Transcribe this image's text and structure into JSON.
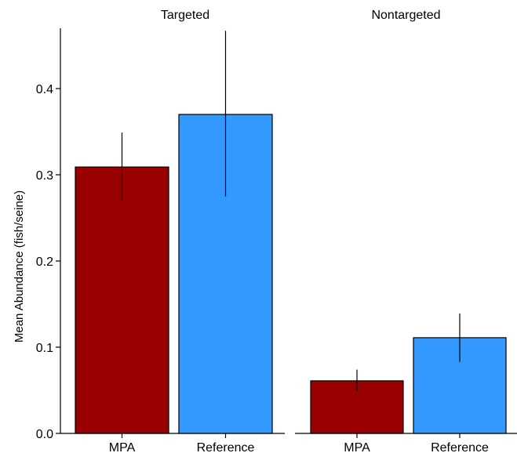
{
  "chart_data": {
    "type": "bar",
    "ylabel": "Mean Abundance (fish/seine)",
    "ylim": [
      0,
      0.47
    ],
    "yticks": [
      0.0,
      0.1,
      0.2,
      0.3,
      0.4
    ],
    "ytick_labels": [
      "0.0",
      "0.1",
      "0.2",
      "0.3",
      "0.4"
    ],
    "categories": [
      "MPA",
      "Reference"
    ],
    "colors": {
      "MPA": "#990000",
      "Reference": "#3399ff"
    },
    "panels": [
      {
        "title": "Targeted",
        "bars": [
          {
            "category": "MPA",
            "value": 0.309,
            "err_low": 0.269,
            "err_high": 0.349
          },
          {
            "category": "Reference",
            "value": 0.37,
            "err_low": 0.275,
            "err_high": 0.467
          }
        ]
      },
      {
        "title": "Nontargeted",
        "bars": [
          {
            "category": "MPA",
            "value": 0.061,
            "err_low": 0.049,
            "err_high": 0.074
          },
          {
            "category": "Reference",
            "value": 0.111,
            "err_low": 0.083,
            "err_high": 0.139
          }
        ]
      }
    ]
  }
}
